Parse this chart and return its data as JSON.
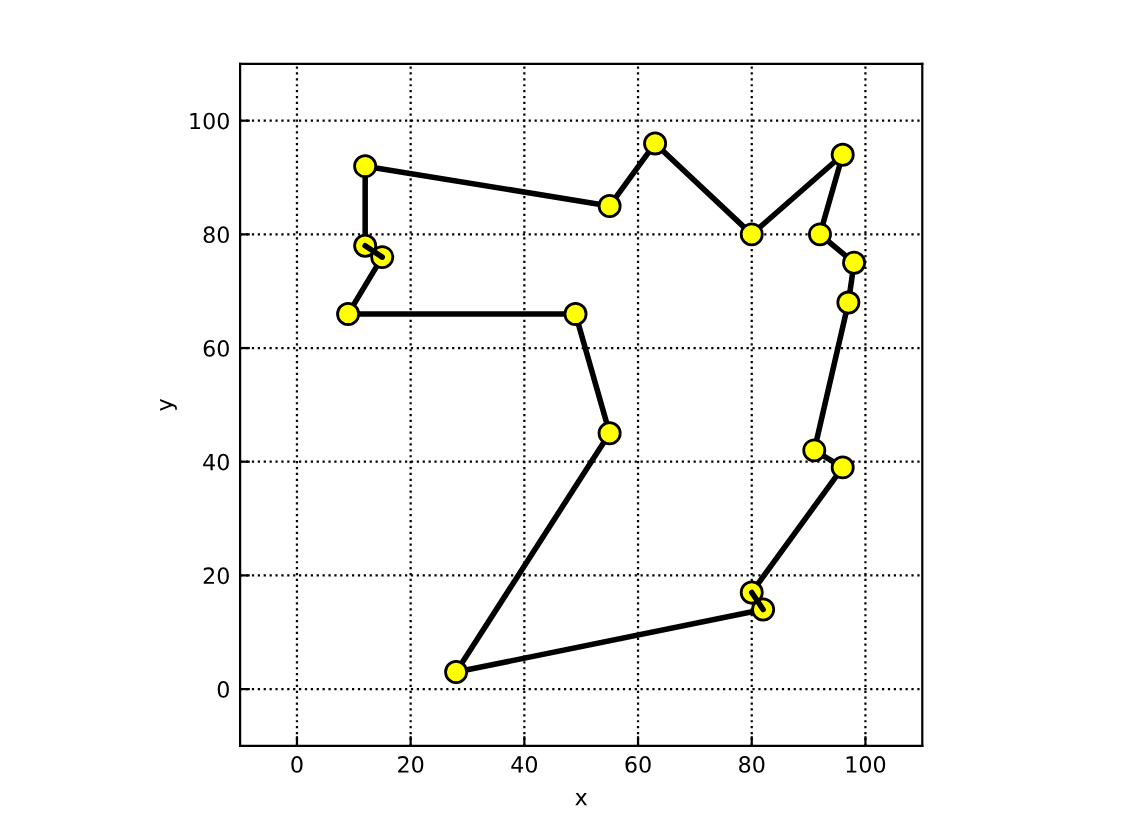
{
  "chart_data": {
    "type": "line",
    "xlabel": "x",
    "ylabel": "y",
    "xlim": [
      -10,
      110
    ],
    "ylim": [
      -10,
      110
    ],
    "xticks": [
      0,
      20,
      40,
      60,
      80,
      100
    ],
    "yticks": [
      0,
      20,
      40,
      60,
      80,
      100
    ],
    "grid": true,
    "series": [
      {
        "color": "#000000",
        "x": [
          12,
          55,
          63,
          80,
          96
        ],
        "values": [
          92,
          85,
          96,
          80,
          94
        ]
      },
      {
        "color": "#000000",
        "x": [
          96,
          92
        ],
        "values": [
          94,
          80
        ]
      },
      {
        "color": "#000000",
        "x": [
          92,
          98
        ],
        "values": [
          80,
          75
        ]
      },
      {
        "color": "#000000",
        "x": [
          98,
          97,
          91
        ],
        "values": [
          75,
          68,
          42
        ]
      },
      {
        "color": "#000000",
        "x": [
          91,
          96
        ],
        "values": [
          42,
          39
        ]
      },
      {
        "color": "#000000",
        "x": [
          96,
          80
        ],
        "values": [
          39,
          17
        ]
      },
      {
        "color": "#000000",
        "x": [
          80,
          82
        ],
        "values": [
          17,
          14
        ]
      },
      {
        "color": "#000000",
        "x": [
          82,
          28
        ],
        "values": [
          14,
          3
        ]
      },
      {
        "color": "#000000",
        "x": [
          28,
          55
        ],
        "values": [
          3,
          45
        ]
      },
      {
        "color": "#000000",
        "x": [
          55,
          49,
          9
        ],
        "values": [
          45,
          66,
          66
        ]
      },
      {
        "color": "#000000",
        "x": [
          9,
          15
        ],
        "values": [
          66,
          76
        ]
      },
      {
        "color": "#000000",
        "x": [
          15,
          12
        ],
        "values": [
          76,
          78
        ]
      },
      {
        "color": "#000000",
        "x": [
          12,
          12
        ],
        "values": [
          78,
          92
        ]
      },
      {
        "type": "scatter",
        "color": "#ffff00",
        "marker": "circle",
        "x": [
          12,
          55,
          63,
          80,
          96,
          92,
          98,
          97,
          91,
          96,
          80,
          82,
          28,
          55,
          49,
          9,
          15,
          12
        ],
        "values": [
          92,
          85,
          96,
          80,
          94,
          80,
          75,
          68,
          42,
          39,
          17,
          14,
          3,
          45,
          66,
          66,
          76,
          78
        ]
      }
    ]
  }
}
